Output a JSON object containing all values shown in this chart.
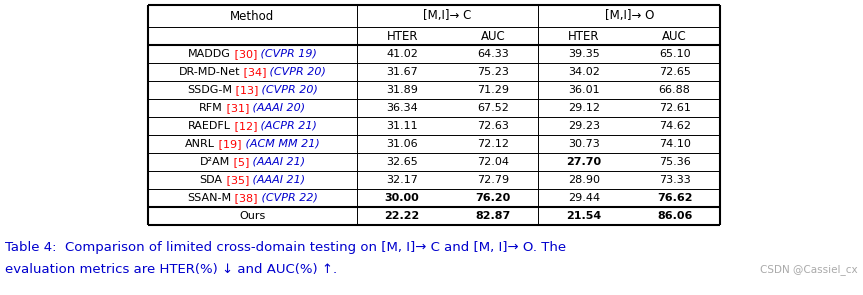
{
  "watermark": "CSDN @Cassiel_cx",
  "rows": [
    {
      "method": "MADDG",
      "ref": "30",
      "venue": "CVPR 19",
      "c_hter": "41.02",
      "c_auc": "64.33",
      "o_hter": "39.35",
      "o_auc": "65.10",
      "bold_c_hter": false,
      "bold_c_auc": false,
      "bold_o_hter": false,
      "bold_o_auc": false
    },
    {
      "method": "DR-MD-Net",
      "ref": "34",
      "venue": "CVPR 20",
      "c_hter": "31.67",
      "c_auc": "75.23",
      "o_hter": "34.02",
      "o_auc": "72.65",
      "bold_c_hter": false,
      "bold_c_auc": false,
      "bold_o_hter": false,
      "bold_o_auc": false
    },
    {
      "method": "SSDG-M",
      "ref": "13",
      "venue": "CVPR 20",
      "c_hter": "31.89",
      "c_auc": "71.29",
      "o_hter": "36.01",
      "o_auc": "66.88",
      "bold_c_hter": false,
      "bold_c_auc": false,
      "bold_o_hter": false,
      "bold_o_auc": false
    },
    {
      "method": "RFM",
      "ref": "31",
      "venue": "AAAI 20",
      "c_hter": "36.34",
      "c_auc": "67.52",
      "o_hter": "29.12",
      "o_auc": "72.61",
      "bold_c_hter": false,
      "bold_c_auc": false,
      "bold_o_hter": false,
      "bold_o_auc": false
    },
    {
      "method": "RAEDFL",
      "ref": "12",
      "venue": "ACPR 21",
      "c_hter": "31.11",
      "c_auc": "72.63",
      "o_hter": "29.23",
      "o_auc": "74.62",
      "bold_c_hter": false,
      "bold_c_auc": false,
      "bold_o_hter": false,
      "bold_o_auc": false
    },
    {
      "method": "ANRL",
      "ref": "19",
      "venue": "ACM MM 21",
      "c_hter": "31.06",
      "c_auc": "72.12",
      "o_hter": "30.73",
      "o_auc": "74.10",
      "bold_c_hter": false,
      "bold_c_auc": false,
      "bold_o_hter": false,
      "bold_o_auc": false
    },
    {
      "method": "D²AM",
      "ref": "5",
      "venue": "AAAI 21",
      "c_hter": "32.65",
      "c_auc": "72.04",
      "o_hter": "27.70",
      "o_auc": "75.36",
      "bold_c_hter": false,
      "bold_c_auc": false,
      "bold_o_hter": true,
      "bold_o_auc": false
    },
    {
      "method": "SDA",
      "ref": "35",
      "venue": "AAAI 21",
      "c_hter": "32.17",
      "c_auc": "72.79",
      "o_hter": "28.90",
      "o_auc": "73.33",
      "bold_c_hter": false,
      "bold_c_auc": false,
      "bold_o_hter": false,
      "bold_o_auc": false
    },
    {
      "method": "SSAN-M",
      "ref": "38",
      "venue": "CVPR 22",
      "c_hter": "30.00",
      "c_auc": "76.20",
      "o_hter": "29.44",
      "o_auc": "76.62",
      "bold_c_hter": true,
      "bold_c_auc": true,
      "bold_o_hter": false,
      "bold_o_auc": true
    },
    {
      "method": "Ours",
      "ref": "",
      "venue": "",
      "c_hter": "22.22",
      "c_auc": "82.87",
      "o_hter": "21.54",
      "o_auc": "86.06",
      "bold_c_hter": true,
      "bold_c_auc": true,
      "bold_o_hter": true,
      "bold_o_auc": true
    }
  ],
  "ref_color": "#FF0000",
  "venue_color": "#0000CD",
  "method_color": "#000000",
  "data_color": "#000000",
  "header_color": "#000000",
  "bg_color": "#FFFFFF",
  "caption_color": "#0000CD",
  "watermark_color": "#AAAAAA",
  "header1": [
    "Method",
    "[M,I]→ C",
    "[M,I]→ O"
  ],
  "header2": [
    "HTER",
    "AUC",
    "HTER",
    "AUC"
  ],
  "caption_line1": "Table 4:  Comparison of limited cross-domain testing on [M, I]→ C and [M, I]→ O. The",
  "caption_line2": "evaluation metrics are HTER(%) ↓ and AUC(%) ↑."
}
